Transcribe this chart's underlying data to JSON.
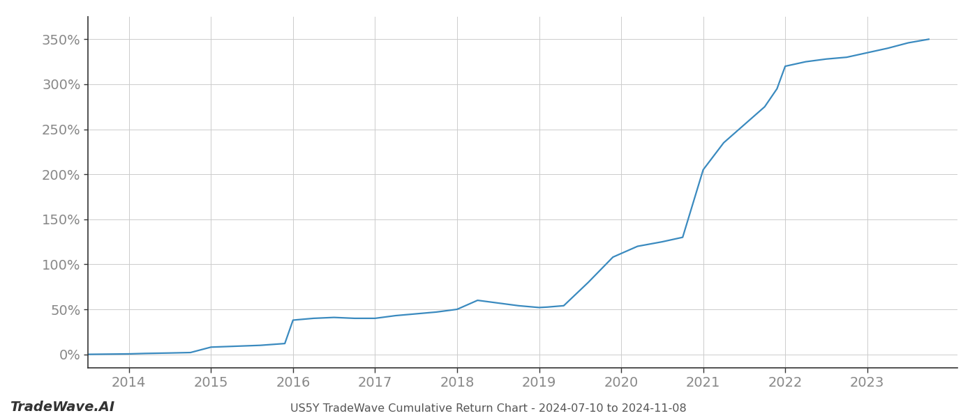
{
  "title": "US5Y TradeWave Cumulative Return Chart - 2024-07-10 to 2024-11-08",
  "watermark": "TradeWave.AI",
  "line_color": "#3a8abf",
  "background_color": "#ffffff",
  "grid_color": "#cccccc",
  "x_values": [
    2013.5,
    2014.0,
    2014.2,
    2014.5,
    2014.75,
    2015.0,
    2015.3,
    2015.6,
    2015.9,
    2016.0,
    2016.25,
    2016.5,
    2016.75,
    2017.0,
    2017.25,
    2017.5,
    2017.75,
    2018.0,
    2018.25,
    2018.5,
    2018.75,
    2019.0,
    2019.1,
    2019.3,
    2019.6,
    2019.9,
    2020.2,
    2020.5,
    2020.75,
    2021.0,
    2021.25,
    2021.5,
    2021.75,
    2021.9,
    2022.0,
    2022.25,
    2022.5,
    2022.75,
    2023.0,
    2023.25,
    2023.5,
    2023.75
  ],
  "y_values": [
    0.0,
    0.5,
    1.0,
    1.5,
    2.0,
    8.0,
    9.0,
    10.0,
    12.0,
    38.0,
    40.0,
    41.0,
    40.0,
    40.0,
    43.0,
    45.0,
    47.0,
    50.0,
    60.0,
    57.0,
    54.0,
    52.0,
    52.5,
    54.0,
    80.0,
    108.0,
    120.0,
    125.0,
    130.0,
    205.0,
    235.0,
    255.0,
    275.0,
    295.0,
    320.0,
    325.0,
    328.0,
    330.0,
    335.0,
    340.0,
    346.0,
    350.0
  ],
  "xlim": [
    2013.5,
    2024.1
  ],
  "ylim": [
    -15,
    375
  ],
  "yticks": [
    0,
    50,
    100,
    150,
    200,
    250,
    300,
    350
  ],
  "xticks": [
    2014,
    2015,
    2016,
    2017,
    2018,
    2019,
    2020,
    2021,
    2022,
    2023
  ],
  "line_width": 1.6,
  "title_fontsize": 11.5,
  "tick_fontsize": 14,
  "watermark_fontsize": 14,
  "axis_color": "#aaaaaa",
  "tick_color": "#888888",
  "spine_color": "#333333"
}
